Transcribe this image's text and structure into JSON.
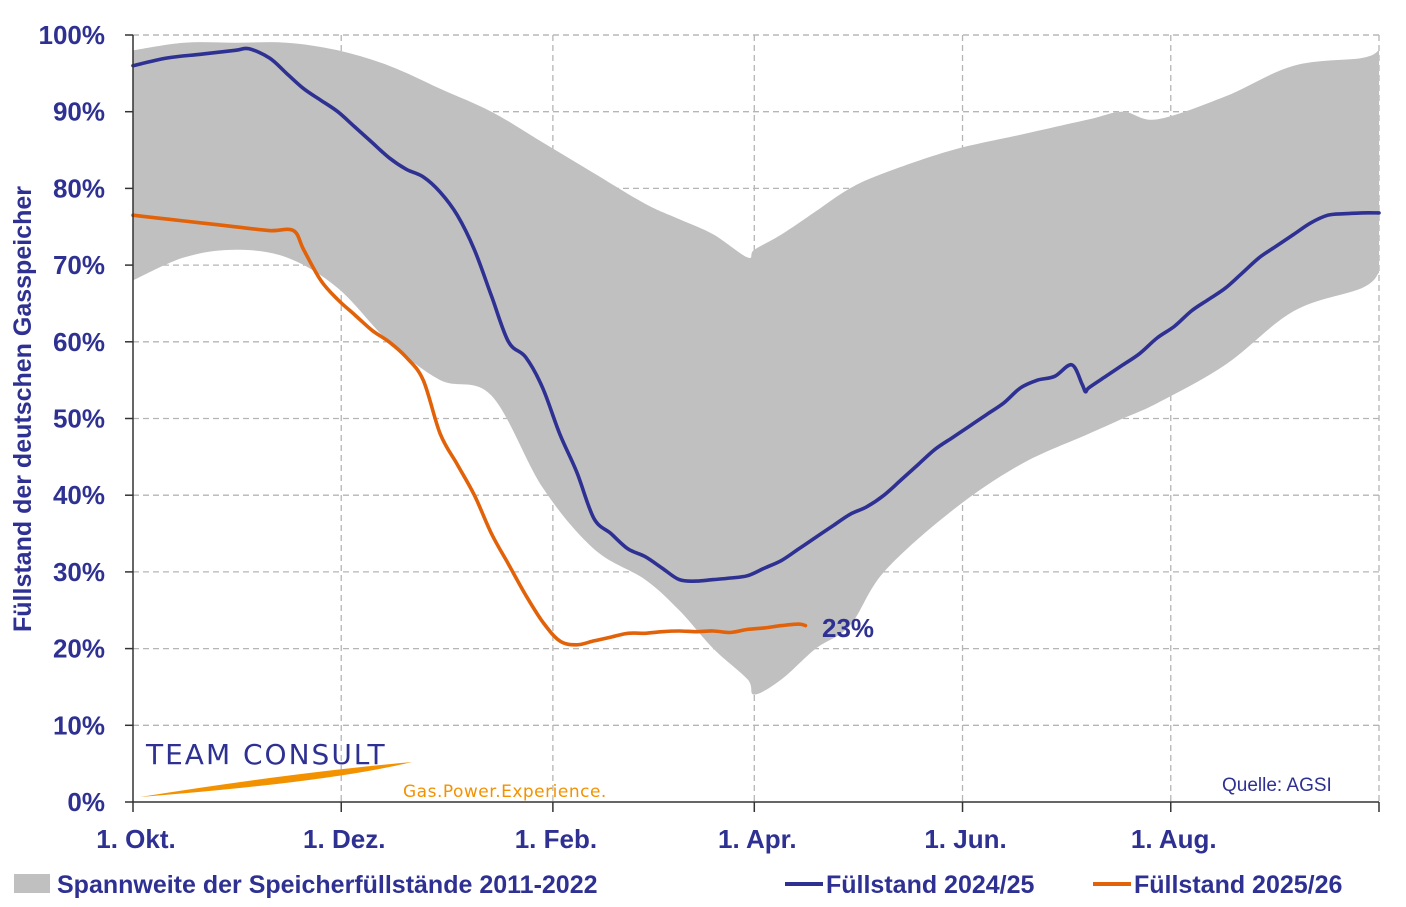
{
  "chart_data": {
    "type": "area",
    "title": "",
    "ylabel": "Füllstand der deutschen Gasspeicher",
    "xlabel": "",
    "ylim": [
      0,
      100
    ],
    "yticks": [
      0,
      10,
      20,
      30,
      40,
      50,
      60,
      70,
      80,
      90,
      100
    ],
    "ytick_labels": [
      "0%",
      "10%",
      "20%",
      "30%",
      "40%",
      "50%",
      "60%",
      "70%",
      "80%",
      "90%",
      "100%"
    ],
    "x_unit": "days since 1. Okt.",
    "xlim": [
      0,
      365
    ],
    "xticks": [
      0,
      61,
      123,
      182,
      243,
      304,
      365
    ],
    "xtick_labels": [
      "1. Okt.",
      "1. Dez.",
      "1. Feb.",
      "1. Apr.",
      "1. Jun.",
      "1. Aug.",
      ""
    ],
    "grid": true,
    "series": [
      {
        "name": "Spannweite der Speicherfüllstände 2011-2022",
        "kind": "band",
        "color": "#c0c0c0",
        "x": [
          0,
          15,
          30,
          45,
          60,
          75,
          90,
          105,
          120,
          135,
          150,
          160,
          170,
          180,
          182,
          190,
          200,
          210,
          220,
          240,
          260,
          280,
          290,
          300,
          320,
          340,
          360,
          365
        ],
        "lower": [
          68,
          71,
          72,
          71,
          67,
          60,
          55,
          53,
          41,
          33,
          29,
          25,
          20,
          16,
          14,
          16,
          20,
          23,
          30,
          38,
          44,
          48,
          50,
          52,
          57,
          64,
          67,
          69
        ],
        "upper": [
          98,
          99,
          99,
          99,
          98,
          96,
          93,
          90,
          86,
          82,
          78,
          76,
          74,
          71,
          72,
          74,
          77,
          80,
          82,
          85,
          87,
          89,
          90,
          89,
          92,
          96,
          97,
          98
        ]
      },
      {
        "name": "Füllstand 2024/25",
        "kind": "line",
        "color": "#2e3192",
        "x": [
          0,
          10,
          20,
          30,
          34,
          40,
          45,
          50,
          55,
          60,
          65,
          70,
          75,
          80,
          85,
          90,
          95,
          100,
          105,
          110,
          115,
          120,
          125,
          130,
          135,
          140,
          145,
          150,
          155,
          160,
          165,
          170,
          175,
          180,
          185,
          190,
          195,
          200,
          205,
          210,
          215,
          220,
          225,
          230,
          235,
          240,
          245,
          250,
          255,
          260,
          265,
          270,
          275,
          278,
          279,
          280,
          285,
          290,
          295,
          300,
          305,
          310,
          315,
          320,
          325,
          330,
          335,
          340,
          345,
          350,
          355,
          360,
          365
        ],
        "y": [
          96,
          97,
          97.5,
          98,
          98.2,
          97,
          95,
          93,
          91.5,
          90,
          88,
          86,
          84,
          82.5,
          81.5,
          79.5,
          76.5,
          72,
          66,
          60,
          58,
          54,
          48,
          43,
          37,
          35,
          33,
          32,
          30.5,
          29,
          28.8,
          29,
          29.2,
          29.5,
          30.5,
          31.5,
          33,
          34.5,
          36,
          37.5,
          38.5,
          40,
          42,
          44,
          46,
          47.5,
          49,
          50.5,
          52,
          54,
          55,
          55.5,
          57,
          54.5,
          53.5,
          54,
          55.5,
          57,
          58.5,
          60.5,
          62,
          64,
          65.5,
          67,
          69,
          71,
          72.5,
          74,
          75.5,
          76.5,
          76.7,
          76.8,
          76.8
        ]
      },
      {
        "name": "Füllstand 2025/26",
        "kind": "line",
        "color": "#e2620a",
        "x": [
          0,
          10,
          20,
          30,
          40,
          47,
          50,
          55,
          60,
          65,
          70,
          75,
          80,
          85,
          90,
          95,
          100,
          105,
          110,
          115,
          120,
          125,
          130,
          135,
          140,
          145,
          150,
          155,
          160,
          165,
          170,
          175,
          180,
          185,
          190,
          195,
          197
        ],
        "y": [
          76.5,
          76,
          75.5,
          75,
          74.5,
          74.5,
          72,
          68,
          65.5,
          63.5,
          61.5,
          60,
          58,
          55,
          48,
          44,
          40,
          35,
          31,
          27,
          23.5,
          21,
          20.5,
          21,
          21.5,
          22,
          22,
          22.2,
          22.3,
          22.2,
          22.3,
          22.1,
          22.5,
          22.7,
          23,
          23.2,
          23
        ]
      }
    ],
    "annotations": [
      {
        "text": "23%",
        "color": "#2e3192"
      }
    ],
    "legend_position": "bottom",
    "source": "Quelle: AGSI"
  },
  "logo": {
    "name": "TEAM CONSULT",
    "tagline": "Gas.Power.Experience."
  },
  "colors": {
    "axis_text": "#2e3192",
    "grid": "#b5b5b5",
    "band": "#c0c0c0",
    "line_2024": "#2e3192",
    "line_2025": "#e2620a",
    "logo_orange": "#f39200"
  }
}
